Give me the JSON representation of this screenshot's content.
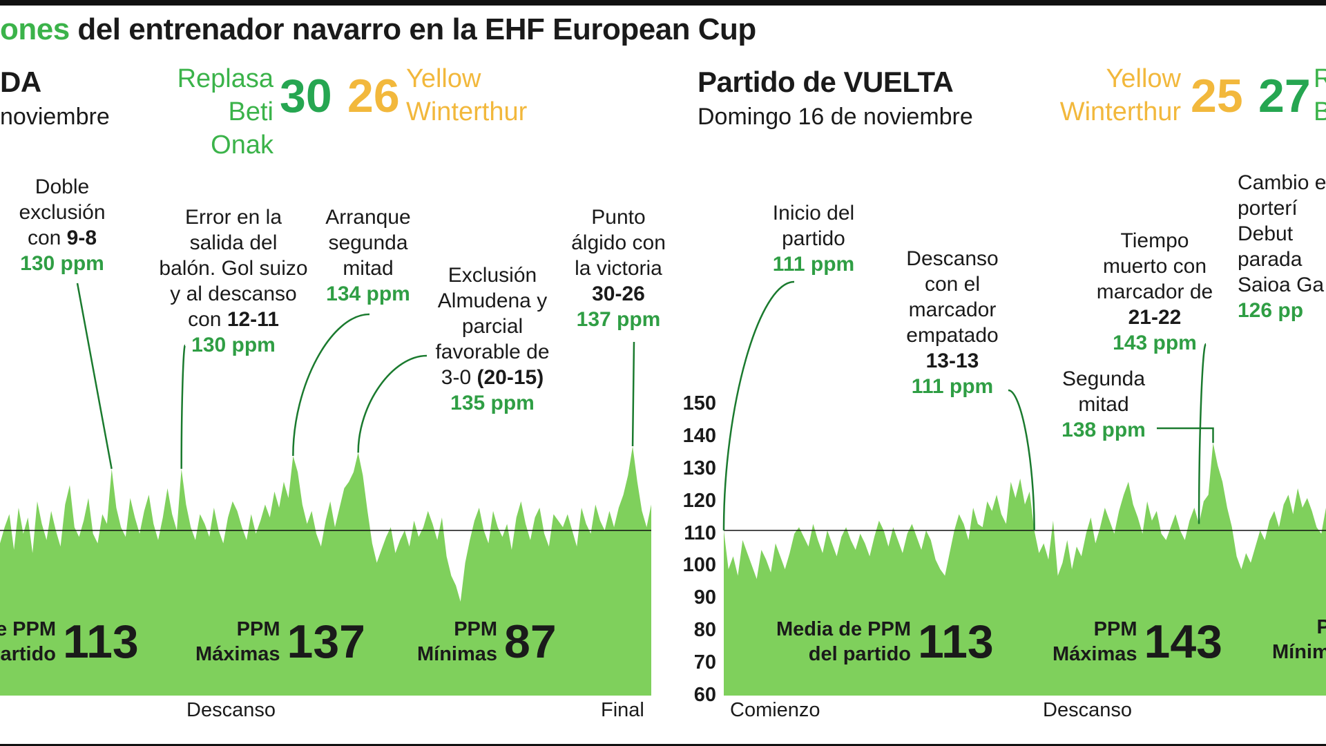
{
  "headline": {
    "highlight": "ones",
    "rest": " del entrenador navarro en la EHF European Cup"
  },
  "colors": {
    "area": "#7fd05c",
    "accent": "#3bb34a",
    "yellow": "#f2b83c",
    "ppm": "#2f9e44",
    "line": "#1a7a2e"
  },
  "ida": {
    "subtitle": "DA",
    "date": "noviembre",
    "home_team": "Replasa\nBeti Onak",
    "home_score": "30",
    "away_score": "26",
    "away_team": "Yellow\nWinterthur",
    "annotations": [
      {
        "text": "Doble\nexclusión\ncon ",
        "bold": "9-8",
        "ppm": "130 ppm"
      },
      {
        "text": "Error en la\nsalida del\nbalón. Gol suizo\ny al descanso\ncon ",
        "bold": "12-11",
        "ppm": "130 ppm"
      },
      {
        "text": "Arranque\nsegunda\nmitad",
        "bold": "",
        "ppm": "134 ppm"
      },
      {
        "text": "Exclusión\nAlmudena y\nparcial\nfavorable de\n3-0 ",
        "bold": "(20-15)",
        "ppm": "135 ppm"
      },
      {
        "text": "Punto\nálgido con\nla victoria\n",
        "bold": "30-26",
        "ppm": "137 ppm"
      }
    ],
    "stats": [
      {
        "label": "e PPM\nartido",
        "value": "113"
      },
      {
        "label": "PPM\nMáximas",
        "value": "137"
      },
      {
        "label": "PPM\nMínimas",
        "value": "87"
      }
    ],
    "x_labels": [
      "Descanso",
      "Final"
    ]
  },
  "vuelta": {
    "subtitle": "Partido de VUELTA",
    "date": "Domingo 16 de noviembre",
    "home_team": "Yellow\nWinterthur",
    "home_score": "25",
    "away_score": "27",
    "away_team": "R\nB",
    "annotations": [
      {
        "text": "Inicio del\npartido",
        "bold": "",
        "ppm": "111 ppm"
      },
      {
        "text": "Descanso\ncon el\nmarcador\nempatado\n",
        "bold": "13-13",
        "ppm": "111 ppm"
      },
      {
        "text": "Segunda\nmitad",
        "bold": "",
        "ppm": "138 ppm"
      },
      {
        "text": "Tiempo\nmuerto con\nmarcador de\n",
        "bold": "21-22",
        "ppm": "143 ppm"
      },
      {
        "text": "Cambio e\nporterí\nDebut\nparada\nSaioa Ga",
        "bold": "",
        "ppm": "126 pp"
      }
    ],
    "stats": [
      {
        "label": "Media de PPM\ndel partido",
        "value": "113"
      },
      {
        "label": "PPM\nMáximas",
        "value": "143"
      },
      {
        "label": "P\nMínim",
        "value": ""
      }
    ],
    "x_labels": [
      "Comienzo",
      "Descanso"
    ]
  },
  "chart_data": [
    {
      "type": "area",
      "title": "Partido de IDA",
      "ylim": [
        60,
        150
      ],
      "reference_line": 111,
      "y": [
        107,
        112,
        116,
        105,
        118,
        110,
        115,
        104,
        120,
        113,
        108,
        117,
        111,
        106,
        119,
        125,
        112,
        109,
        114,
        121,
        110,
        107,
        116,
        113,
        130,
        118,
        112,
        109,
        121,
        115,
        110,
        117,
        122,
        113,
        108,
        115,
        124,
        116,
        111,
        130,
        119,
        112,
        108,
        116,
        113,
        109,
        118,
        111,
        107,
        115,
        120,
        117,
        112,
        108,
        116,
        110,
        114,
        119,
        115,
        123,
        118,
        126,
        121,
        134,
        129,
        119,
        113,
        117,
        110,
        106,
        114,
        120,
        112,
        118,
        124,
        126,
        129,
        135,
        128,
        117,
        107,
        101,
        105,
        109,
        112,
        104,
        108,
        111,
        106,
        114,
        109,
        112,
        117,
        113,
        108,
        115,
        103,
        97,
        94,
        89,
        101,
        108,
        114,
        118,
        111,
        107,
        117,
        112,
        109,
        113,
        105,
        115,
        120,
        113,
        108,
        115,
        118,
        110,
        106,
        116,
        114,
        112,
        116,
        111,
        106,
        118,
        113,
        110,
        119,
        114,
        111,
        117,
        112,
        118,
        122,
        128,
        137,
        126,
        117,
        112,
        119
      ]
    },
    {
      "type": "area",
      "title": "Partido de VUELTA",
      "ylim": [
        60,
        150
      ],
      "reference_line": 111,
      "ticks": [
        150,
        140,
        130,
        120,
        110,
        100,
        90,
        80,
        70,
        60
      ],
      "y": [
        111,
        99,
        103,
        97,
        108,
        104,
        100,
        96,
        105,
        102,
        98,
        107,
        103,
        99,
        104,
        110,
        112,
        109,
        106,
        113,
        108,
        104,
        111,
        107,
        103,
        109,
        112,
        108,
        105,
        110,
        107,
        103,
        109,
        114,
        111,
        106,
        112,
        108,
        104,
        110,
        113,
        109,
        105,
        111,
        108,
        102,
        99,
        97,
        104,
        111,
        116,
        113,
        108,
        118,
        113,
        112,
        120,
        117,
        122,
        116,
        113,
        126,
        121,
        127,
        119,
        123,
        111,
        104,
        107,
        102,
        114,
        97,
        101,
        108,
        99,
        106,
        103,
        110,
        115,
        107,
        112,
        118,
        114,
        110,
        117,
        122,
        126,
        119,
        115,
        110,
        120,
        114,
        117,
        110,
        108,
        112,
        116,
        111,
        108,
        114,
        118,
        113,
        120,
        122,
        138,
        131,
        126,
        118,
        112,
        103,
        99,
        104,
        101,
        106,
        111,
        108,
        114,
        117,
        112,
        119,
        122,
        116,
        124,
        118,
        121,
        117,
        112,
        110,
        118
      ]
    }
  ]
}
